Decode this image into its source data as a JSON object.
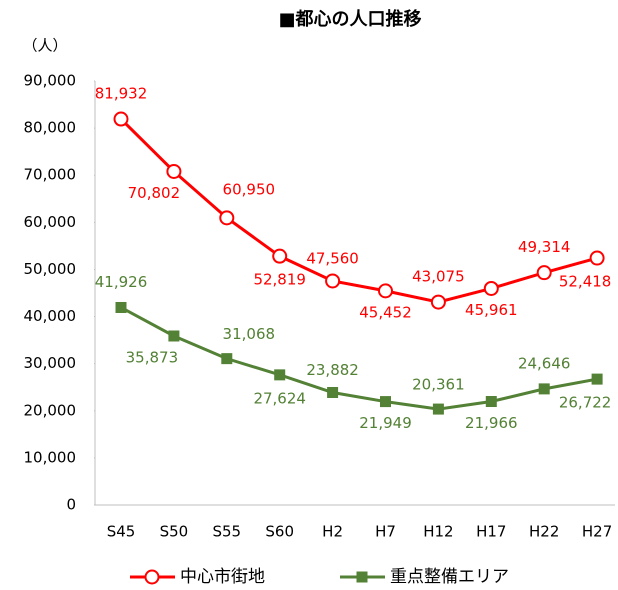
{
  "chart_data": {
    "type": "line",
    "title": "■都心の人口推移",
    "y_label": "（人）",
    "categories": [
      "S45",
      "S50",
      "S55",
      "S60",
      "H2",
      "H7",
      "H12",
      "H17",
      "H22",
      "H27"
    ],
    "series": [
      {
        "name": "中心市街地",
        "color": "#ff0000",
        "marker": "circle",
        "values": [
          81932,
          70802,
          60950,
          52819,
          47560,
          45452,
          43075,
          45961,
          49314,
          52418
        ],
        "value_labels": [
          "81,932",
          "70,802",
          "60,950",
          "52,819",
          "47,560",
          "45,452",
          "43,075",
          "45,961",
          "49,314",
          "52,418"
        ]
      },
      {
        "name": "重点整備エリア",
        "color": "#538135",
        "marker": "square",
        "values": [
          41926,
          35873,
          31068,
          27624,
          23882,
          21949,
          20361,
          21966,
          24646,
          26722
        ],
        "value_labels": [
          "41,926",
          "35,873",
          "31,068",
          "27,624",
          "23,882",
          "21,949",
          "20,361",
          "21,966",
          "24,646",
          "26,722"
        ]
      }
    ],
    "ylim": [
      0,
      90000
    ],
    "yticks": [
      0,
      {
        "value": 10000,
        "label": "10,000"
      },
      {
        "value": 20000,
        "label": "20,000"
      },
      {
        "value": 30000,
        "label": "30,000"
      },
      {
        "value": 40000,
        "label": "40,000"
      },
      {
        "value": 50000,
        "label": "50,000"
      },
      {
        "value": 60000,
        "label": "60,000"
      },
      {
        "value": 70000,
        "label": "70,000"
      },
      {
        "value": 80000,
        "label": "80,000"
      },
      {
        "value": 90000,
        "label": "90,000"
      }
    ],
    "grid": false,
    "legend": "bottom"
  }
}
